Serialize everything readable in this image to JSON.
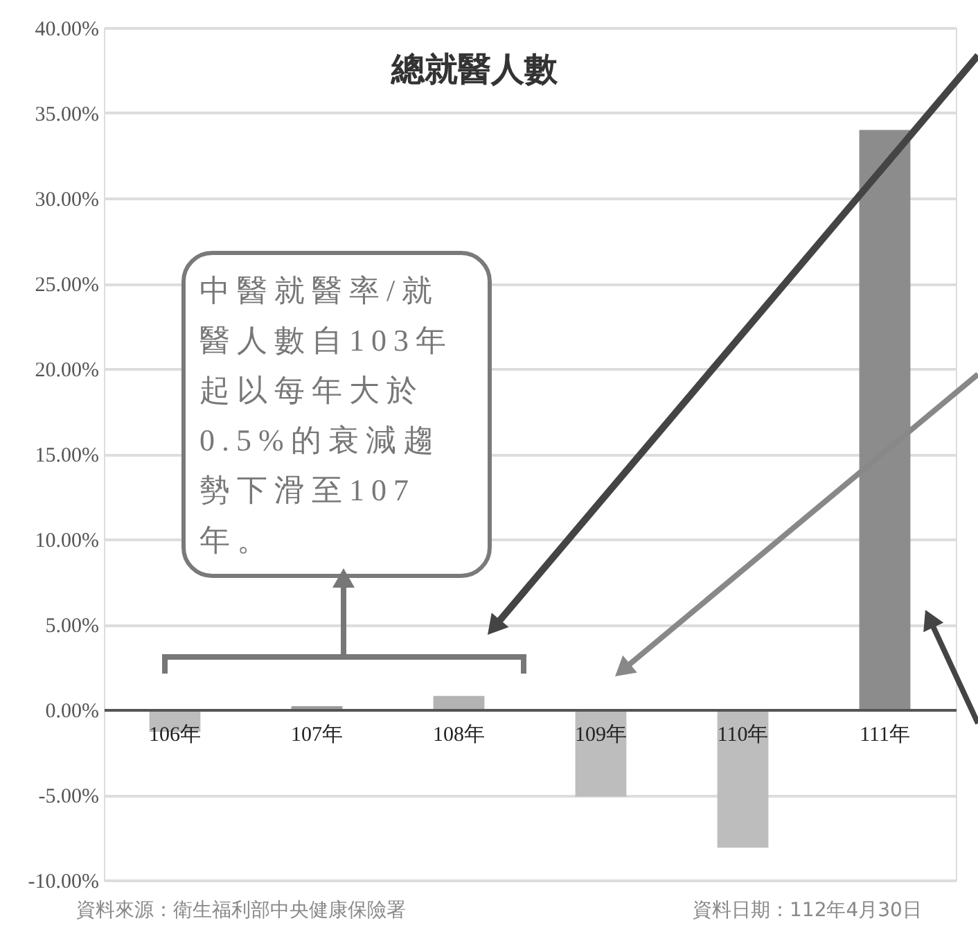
{
  "chart_data": {
    "type": "bar",
    "title": "總就醫人數",
    "categories": [
      "106年",
      "107年",
      "108年",
      "109年",
      "110年",
      "111年"
    ],
    "values": [
      -1.3,
      0.2,
      0.8,
      -5.1,
      -8.1,
      34
    ],
    "colors": [
      "#bdbdbd",
      "#9c9c9c",
      "#b3b3b3",
      "#bdbdbd",
      "#bdbdbd",
      "#8c8c8c"
    ],
    "ylim": [
      -10,
      40
    ],
    "yticks": [
      {
        "value": -10,
        "label": "-10.00%"
      },
      {
        "value": -5,
        "label": "-5.00%"
      },
      {
        "value": 0,
        "label": "0.00%"
      },
      {
        "value": 5,
        "label": "5.00%"
      },
      {
        "value": 10,
        "label": "10.00%"
      },
      {
        "value": 15,
        "label": "15.00%"
      },
      {
        "value": 20,
        "label": "20.00%"
      },
      {
        "value": 25,
        "label": "25.00%"
      },
      {
        "value": 30,
        "label": "30.00%"
      },
      {
        "value": 35,
        "label": "35.00%"
      },
      {
        "value": 40,
        "label": "40.00%"
      }
    ],
    "grid": "y",
    "annotations": [
      "中醫就醫率/就醫人數自103年起以每年大於0.5%的衰減趨勢下滑至107年。",
      "資料來源：衛生福利部中央健康保險署",
      "資料日期：112年4月30日"
    ]
  }
}
